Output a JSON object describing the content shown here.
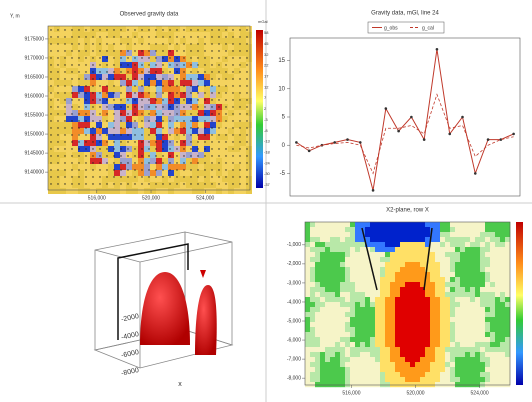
{
  "chart_data": [
    {
      "type": "heatmap",
      "title": "Observed gravity data",
      "y_label": "Y, m",
      "colorbar_label": "mGal",
      "xlim": [
        512400,
        527300
      ],
      "xticks": [
        {
          "value": 516000,
          "label": "516,000"
        },
        {
          "value": 520000,
          "label": "520,000"
        },
        {
          "value": 524000,
          "label": "524,000"
        }
      ],
      "ylim": [
        9135300,
        9178400
      ],
      "yticks": [
        9175000,
        9170000,
        9165000,
        9160000,
        9155000,
        9150000,
        9145000,
        9140000
      ],
      "colorbar_ticks": [
        58,
        45,
        32,
        22,
        17,
        12,
        7,
        2,
        -3,
        -8,
        -13,
        -18,
        -24,
        -30,
        -37
      ]
    },
    {
      "type": "line",
      "title": "Gravity data, mGl, line 24",
      "x": [
        1,
        2,
        3,
        4,
        5,
        6,
        7,
        8,
        9,
        10,
        11,
        12,
        13,
        14,
        15,
        16,
        17,
        18
      ],
      "xlim": [
        0.5,
        18.5
      ],
      "ylim": [
        -9,
        19
      ],
      "yticks": [
        15,
        10,
        5,
        0,
        -5
      ],
      "series": [
        {
          "name": "g_obs",
          "color": "#c0392b",
          "dash": false,
          "values": [
            0.5,
            -1,
            0,
            0.5,
            1,
            0.5,
            -8,
            6.5,
            2.5,
            5,
            1,
            17,
            2,
            5,
            -5,
            1,
            1,
            2
          ]
        },
        {
          "name": "g_cal",
          "color": "#c0392b",
          "dash": true,
          "values": [
            0,
            -0.5,
            0,
            0.3,
            0.5,
            0,
            -5,
            3,
            3,
            3.5,
            2,
            9,
            3,
            3.5,
            -2,
            0,
            1,
            1.5
          ]
        }
      ]
    },
    {
      "type": "surface3d",
      "zticks": [
        -2000,
        -4000,
        -6000,
        -8000
      ],
      "x_label": "x"
    },
    {
      "type": "heatmap",
      "title": "X2-plane, row X",
      "xlim": [
        513100,
        525900
      ],
      "xticks": [
        {
          "value": 516000,
          "label": "516,000"
        },
        {
          "value": 520000,
          "label": "520,000"
        },
        {
          "value": 524000,
          "label": "524,000"
        }
      ],
      "ylim": [
        -8360,
        200
      ],
      "yticks": [
        {
          "value": -1000,
          "label": "-1,000"
        },
        {
          "value": -2000,
          "label": "-2,000"
        },
        {
          "value": -3000,
          "label": "-3,000"
        },
        {
          "value": -4000,
          "label": "-4,000"
        },
        {
          "value": -5000,
          "label": "-5,000"
        },
        {
          "value": -6000,
          "label": "-6,000"
        },
        {
          "value": -7000,
          "label": "-7,000"
        },
        {
          "value": -8000,
          "label": "-8,000"
        }
      ]
    }
  ]
}
